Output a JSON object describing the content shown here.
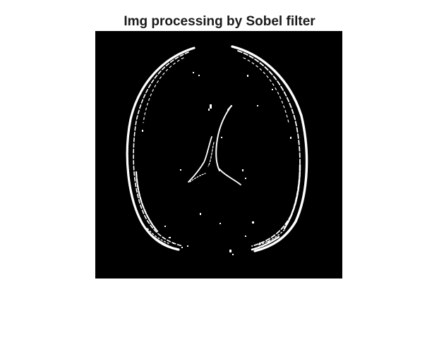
{
  "figure": {
    "title": "Img processing by Sobel filter"
  },
  "image": {
    "background_color": "#000000",
    "edge_color": "#ffffff",
    "content": "sobel-edge-map"
  }
}
